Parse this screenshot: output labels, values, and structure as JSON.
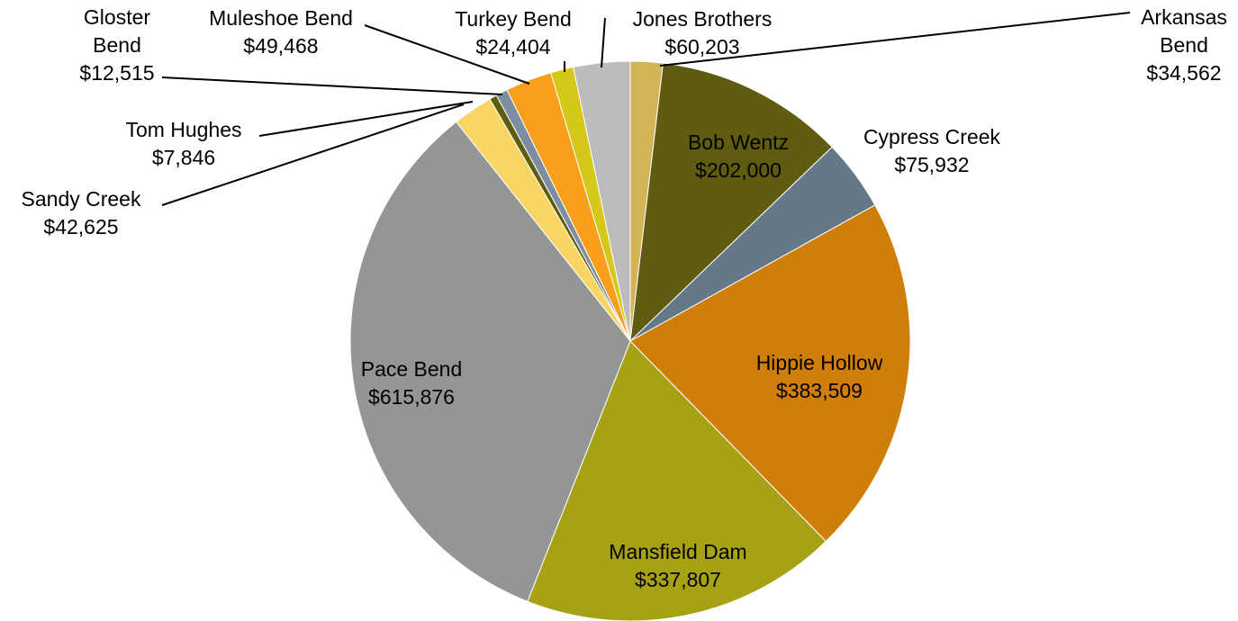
{
  "chart_data": {
    "type": "pie",
    "slices": [
      {
        "label": "Arkansas Bend",
        "value": 34562,
        "value_label": "$34,562",
        "color": "#d4b458"
      },
      {
        "label": "Bob Wentz",
        "value": 202000,
        "value_label": "$202,000",
        "color": "#5f5c0f"
      },
      {
        "label": "Cypress Creek",
        "value": 75932,
        "value_label": "$75,932",
        "color": "#647889"
      },
      {
        "label": "Hippie Hollow",
        "value": 383509,
        "value_label": "$383,509",
        "color": "#d07e0a"
      },
      {
        "label": "Mansfield Dam",
        "value": 337807,
        "value_label": "$337,807",
        "color": "#a7a116"
      },
      {
        "label": "Pace Bend",
        "value": 615876,
        "value_label": "$615,876",
        "color": "#959595"
      },
      {
        "label": "Sandy Creek",
        "value": 42625,
        "value_label": "$42,625",
        "color": "#fbd564"
      },
      {
        "label": "Tom Hughes",
        "value": 7846,
        "value_label": "$7,846",
        "color": "#5f5c0f"
      },
      {
        "label": "Gloster Bend",
        "value": 12515,
        "value_label": "$12,515",
        "color": "#7d8ea3"
      },
      {
        "label": "Muleshoe Bend",
        "value": 49468,
        "value_label": "$49,468",
        "color": "#f99f1b"
      },
      {
        "label": "Turkey Bend",
        "value": 24404,
        "value_label": "$24,404",
        "color": "#d6c71b"
      },
      {
        "label": "Jones Brothers",
        "value": 60203,
        "value_label": "$60,203",
        "color": "#bcbcbc"
      }
    ],
    "start_angle_deg": 0,
    "direction": "clockwise",
    "title": "",
    "legend": "none",
    "labels": "category and value"
  }
}
